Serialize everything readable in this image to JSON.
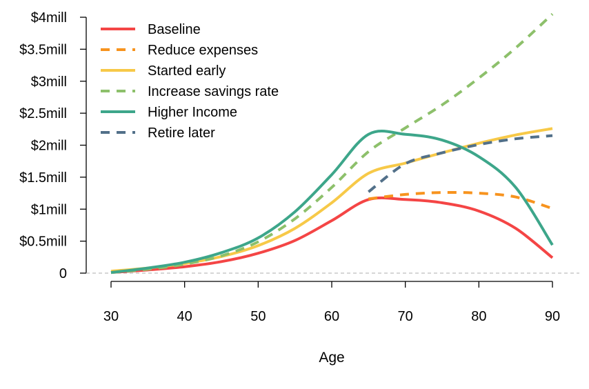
{
  "chart_data": {
    "type": "line",
    "title": "",
    "xlabel": "Age",
    "ylabel": "",
    "xlim": [
      30,
      90
    ],
    "ylim": [
      0,
      4000000
    ],
    "x_ticks": [
      30,
      40,
      50,
      60,
      70,
      80,
      90
    ],
    "x_tick_labels": [
      "30",
      "40",
      "50",
      "60",
      "70",
      "80",
      "90"
    ],
    "y_ticks": [
      0,
      500000,
      1000000,
      1500000,
      2000000,
      2500000,
      3000000,
      3500000,
      4000000
    ],
    "y_tick_labels": [
      "0",
      "$0.5mill",
      "$1mill",
      "$1.5mill",
      "$2mill",
      "$2.5mill",
      "$3mill",
      "$3.5mill",
      "$4mill"
    ],
    "zero_line": "dashed gray",
    "legend_position": "top-left",
    "grid": false,
    "series": [
      {
        "name": "Baseline",
        "color": "#F44545",
        "dash": "solid",
        "x": [
          30,
          35,
          40,
          45,
          50,
          55,
          60,
          65,
          70,
          75,
          80,
          85,
          90
        ],
        "y": [
          10000,
          50000,
          100000,
          180000,
          310000,
          510000,
          820000,
          1150000,
          1150000,
          1100000,
          970000,
          700000,
          240000
        ]
      },
      {
        "name": "Reduce expenses",
        "color": "#F7931E",
        "dash": "dashed",
        "x": [
          65,
          70,
          75,
          80,
          85,
          90
        ],
        "y": [
          1160000,
          1230000,
          1260000,
          1250000,
          1190000,
          1010000
        ]
      },
      {
        "name": "Started early",
        "color": "#F7C948",
        "dash": "solid",
        "x": [
          30,
          35,
          40,
          45,
          50,
          55,
          60,
          65,
          70,
          75,
          80,
          85,
          90
        ],
        "y": [
          30000,
          80000,
          150000,
          260000,
          430000,
          700000,
          1100000,
          1560000,
          1720000,
          1880000,
          2030000,
          2160000,
          2260000
        ]
      },
      {
        "name": "Increase savings rate",
        "color": "#8DC06B",
        "dash": "dashed",
        "x": [
          30,
          35,
          40,
          45,
          50,
          55,
          60,
          65,
          70,
          75,
          80,
          85,
          90
        ],
        "y": [
          10000,
          60000,
          140000,
          270000,
          490000,
          850000,
          1340000,
          1900000,
          2270000,
          2630000,
          3050000,
          3520000,
          4050000
        ]
      },
      {
        "name": "Higher Income",
        "color": "#3DA68A",
        "dash": "solid",
        "x": [
          30,
          35,
          40,
          45,
          50,
          55,
          60,
          65,
          70,
          75,
          80,
          85,
          90
        ],
        "y": [
          10000,
          80000,
          170000,
          320000,
          550000,
          960000,
          1540000,
          2170000,
          2170000,
          2080000,
          1820000,
          1340000,
          440000
        ]
      },
      {
        "name": "Retire later",
        "color": "#527089",
        "dash": "dashed",
        "x": [
          65,
          70,
          75,
          80,
          85,
          90
        ],
        "y": [
          1270000,
          1710000,
          1880000,
          2010000,
          2100000,
          2150000
        ]
      }
    ]
  }
}
